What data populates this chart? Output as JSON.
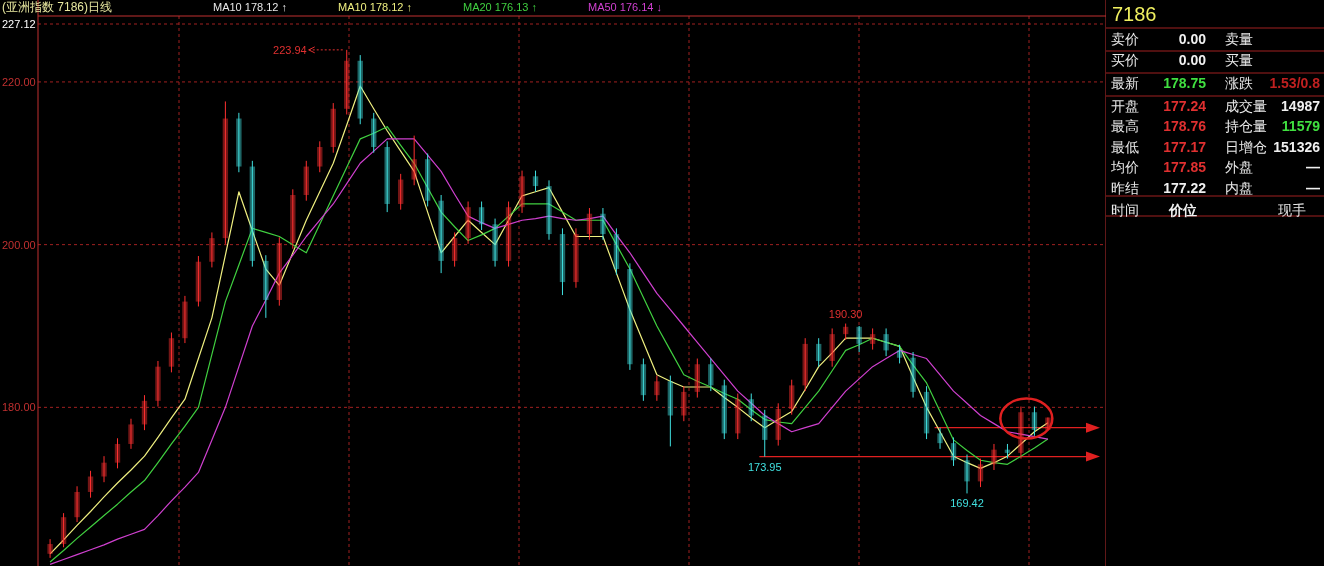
{
  "chart_data": [
    {
      "type": "candlestick",
      "title": "(亚洲指数 7186)日线",
      "categories": [
        null,
        null,
        null,
        null,
        null,
        null,
        null,
        null,
        null,
        null,
        null,
        null,
        null,
        null,
        null,
        null,
        null,
        null,
        null,
        null,
        null,
        null,
        null,
        null,
        null,
        null,
        null,
        null,
        null,
        null,
        null,
        null,
        null,
        null,
        null,
        null,
        null,
        null,
        null,
        null,
        null,
        null,
        null,
        null,
        null,
        null,
        null,
        null,
        null,
        null,
        null,
        null,
        null,
        null,
        null,
        null,
        null,
        null,
        null,
        null,
        null,
        null,
        null,
        null,
        null,
        null,
        null,
        null,
        null,
        null,
        null,
        null,
        null,
        null,
        null
      ],
      "ohlc": [
        [
          162.0,
          163.8,
          161.5,
          163.2
        ],
        [
          163.2,
          167.0,
          162.8,
          166.5
        ],
        [
          166.5,
          170.3,
          165.9,
          169.6
        ],
        [
          169.6,
          172.2,
          168.9,
          171.5
        ],
        [
          171.5,
          174.0,
          170.8,
          173.2
        ],
        [
          173.2,
          176.2,
          172.5,
          175.5
        ],
        [
          175.5,
          178.6,
          174.9,
          177.9
        ],
        [
          177.9,
          181.5,
          177.2,
          180.8
        ],
        [
          180.8,
          185.7,
          180.1,
          185.0
        ],
        [
          185.0,
          189.2,
          184.3,
          188.5
        ],
        [
          188.5,
          193.7,
          187.9,
          193.0
        ],
        [
          193.0,
          198.6,
          192.4,
          197.9
        ],
        [
          197.9,
          201.5,
          197.2,
          200.8
        ],
        [
          200.8,
          217.6,
          200.1,
          215.5
        ],
        [
          215.5,
          216.2,
          208.9,
          209.6
        ],
        [
          209.6,
          210.3,
          197.3,
          198.0
        ],
        [
          198.0,
          198.7,
          191.0,
          193.2
        ],
        [
          193.2,
          200.9,
          192.5,
          200.2
        ],
        [
          200.2,
          206.8,
          199.5,
          206.1
        ],
        [
          206.1,
          210.3,
          205.4,
          209.6
        ],
        [
          209.6,
          212.7,
          208.9,
          212.0
        ],
        [
          212.0,
          217.4,
          211.3,
          216.7
        ],
        [
          216.7,
          223.94,
          216.0,
          222.6
        ],
        [
          222.6,
          223.3,
          214.8,
          215.5
        ],
        [
          215.5,
          216.2,
          211.3,
          212.0
        ],
        [
          212.0,
          212.7,
          204.0,
          205.0
        ],
        [
          205.0,
          208.7,
          204.3,
          208.0
        ],
        [
          208.0,
          213.4,
          207.3,
          210.5
        ],
        [
          210.5,
          211.2,
          204.7,
          205.4
        ],
        [
          205.4,
          206.1,
          196.5,
          198.0
        ],
        [
          198.0,
          201.5,
          197.3,
          200.8
        ],
        [
          200.8,
          205.3,
          200.1,
          204.6
        ],
        [
          204.6,
          205.3,
          201.8,
          202.5
        ],
        [
          202.5,
          203.2,
          197.3,
          198.0
        ],
        [
          198.0,
          205.3,
          197.3,
          204.6
        ],
        [
          204.6,
          209.1,
          203.9,
          208.4
        ],
        [
          208.4,
          209.1,
          206.5,
          207.2
        ],
        [
          207.2,
          207.9,
          200.6,
          201.3
        ],
        [
          201.3,
          202.0,
          193.8,
          195.4
        ],
        [
          195.4,
          202.0,
          194.7,
          201.3
        ],
        [
          201.3,
          204.5,
          200.6,
          203.8
        ],
        [
          203.8,
          204.5,
          200.6,
          201.3
        ],
        [
          201.3,
          202.0,
          196.3,
          197.0
        ],
        [
          197.0,
          197.7,
          184.6,
          185.3
        ],
        [
          185.3,
          186.0,
          180.8,
          181.5
        ],
        [
          181.5,
          183.9,
          180.8,
          183.2
        ],
        [
          183.2,
          183.9,
          175.2,
          179.0
        ],
        [
          179.0,
          182.6,
          178.3,
          181.9
        ],
        [
          181.9,
          186.0,
          181.2,
          185.3
        ],
        [
          185.3,
          186.0,
          182.0,
          182.7
        ],
        [
          182.7,
          183.4,
          176.1,
          176.8
        ],
        [
          176.8,
          181.7,
          176.1,
          181.0
        ],
        [
          181.0,
          181.7,
          178.3,
          179.0
        ],
        [
          179.0,
          179.7,
          173.95,
          176.0
        ],
        [
          176.0,
          180.5,
          175.3,
          179.8
        ],
        [
          179.8,
          183.4,
          179.1,
          182.7
        ],
        [
          182.7,
          188.5,
          182.0,
          187.8
        ],
        [
          187.8,
          188.5,
          185.0,
          185.7
        ],
        [
          185.7,
          189.7,
          185.0,
          189.0
        ],
        [
          189.0,
          190.3,
          188.3,
          189.9
        ],
        [
          189.9,
          190.0,
          186.8,
          187.8
        ],
        [
          187.8,
          189.7,
          187.1,
          189.0
        ],
        [
          189.0,
          189.7,
          186.3,
          187.0
        ],
        [
          187.0,
          187.7,
          185.4,
          186.1
        ],
        [
          186.1,
          186.8,
          181.2,
          181.9
        ],
        [
          181.9,
          182.6,
          176.1,
          176.8
        ],
        [
          176.8,
          177.5,
          174.9,
          175.6
        ],
        [
          175.6,
          176.3,
          172.8,
          173.5
        ],
        [
          173.5,
          174.2,
          169.42,
          170.9
        ],
        [
          170.9,
          173.7,
          170.2,
          173.0
        ],
        [
          173.0,
          175.5,
          172.3,
          174.8
        ],
        [
          174.8,
          175.5,
          173.7,
          174.4
        ],
        [
          174.4,
          180.1,
          173.7,
          179.4
        ],
        [
          179.4,
          180.1,
          176.5,
          177.22
        ],
        [
          177.24,
          178.76,
          177.17,
          178.75
        ]
      ],
      "series": [
        {
          "type": "line",
          "name": "MA10 178.12 ↑",
          "color": "#f0f080",
          "values": [
            162,
            163.7,
            165.5,
            167.2,
            169,
            170.7,
            172.3,
            174,
            176.3,
            178.7,
            181,
            186,
            191,
            198.7,
            206.5,
            201.7,
            197,
            195,
            199,
            203,
            206.5,
            210,
            214.7,
            219.5,
            216.7,
            214,
            211.5,
            209,
            204,
            199,
            201,
            203,
            201.5,
            200,
            203,
            206,
            206.5,
            207,
            204,
            201,
            201,
            201,
            196.5,
            192,
            188,
            184,
            183.2,
            182.5,
            182.5,
            182.5,
            181.2,
            180,
            178.7,
            177.5,
            178.5,
            179.5,
            182.2,
            185,
            186.7,
            188.5,
            188.5,
            188.5,
            188,
            187.5,
            183.7,
            180,
            177,
            174,
            173.2,
            172.5,
            173.2,
            174,
            175.5,
            177,
            178.1
          ]
        },
        {
          "type": "line",
          "name": "MA20 176.13 ↑",
          "color": "#40d040",
          "values": [
            161,
            162.4,
            163.9,
            165.3,
            166.7,
            168.1,
            169.6,
            171,
            173.2,
            175.5,
            177.7,
            180,
            186.5,
            193,
            197.5,
            202,
            201.5,
            201,
            200,
            199,
            202.5,
            206,
            209.5,
            213,
            213.7,
            214.5,
            212.2,
            210,
            207,
            204,
            202.2,
            200.5,
            201.2,
            202,
            203.5,
            205,
            205,
            205,
            204,
            203,
            203,
            203,
            200,
            197,
            193.5,
            190,
            187,
            184,
            183.2,
            182.5,
            181.7,
            181,
            179.7,
            178.5,
            178.2,
            178,
            180,
            182,
            184.5,
            187,
            187.7,
            188.5,
            188,
            187.5,
            185.2,
            183,
            179.5,
            176,
            174.7,
            173.5,
            173.2,
            173,
            174,
            175,
            176.1
          ]
        },
        {
          "type": "line",
          "name": "MA50 176.14 ↓",
          "color": "#d040d0",
          "values": [
            160.7,
            161.3,
            161.9,
            162.5,
            163.1,
            163.8,
            164.4,
            165,
            166.7,
            168.5,
            170.2,
            172,
            176,
            180,
            185,
            190,
            193.2,
            196.5,
            198.7,
            201,
            203,
            205,
            207.5,
            210,
            211.5,
            213,
            213,
            213,
            211,
            209,
            206.2,
            203.5,
            202.7,
            202,
            202.5,
            203,
            203.2,
            203.5,
            203.2,
            203,
            203.2,
            203.5,
            201.2,
            199,
            196.5,
            194,
            192,
            190,
            188,
            186,
            184,
            182,
            180.5,
            179,
            178,
            177,
            177.5,
            178,
            180,
            182,
            183.5,
            185,
            186,
            187,
            186.5,
            186,
            184,
            182,
            180.5,
            179,
            178,
            177,
            176.7,
            176.4,
            176.1
          ]
        }
      ],
      "ylim": [
        160.5,
        227.12
      ],
      "yticks": [
        {
          "value": 180,
          "label": "180.00"
        },
        {
          "value": 200,
          "label": "200.00"
        },
        {
          "value": 220,
          "label": "220.00"
        },
        {
          "value": 227.12,
          "label": "227.12"
        }
      ],
      "grid": true,
      "legend": "top",
      "tick_labels": "y",
      "ref_lines": [
        {
          "axis": "y",
          "value": 173.95,
          "color": "#e02020"
        },
        {
          "axis": "y",
          "value": 177.5,
          "color": "#e02020"
        }
      ],
      "annotations": [
        "MA10 178.12 ↑",
        "223.94",
        "190.30",
        "173.95",
        "169.42"
      ]
    },
    {
      "type": "other",
      "title": "7186",
      "annotations": [
        "卖价",
        "0.00",
        "卖量",
        "买价",
        "0.00",
        "买量",
        "最新",
        "178.75",
        "涨跌",
        "1.53/0.8",
        "开盘",
        "177.24",
        "成交量",
        "14987",
        "最高",
        "178.76",
        "持仓量",
        "11579",
        "最低",
        "177.17",
        "日增仓",
        "151326",
        "均价",
        "177.85",
        "外盘",
        "—",
        "昨结",
        "177.22",
        "内盘",
        "—",
        "时间",
        "价位",
        "现手"
      ]
    }
  ]
}
